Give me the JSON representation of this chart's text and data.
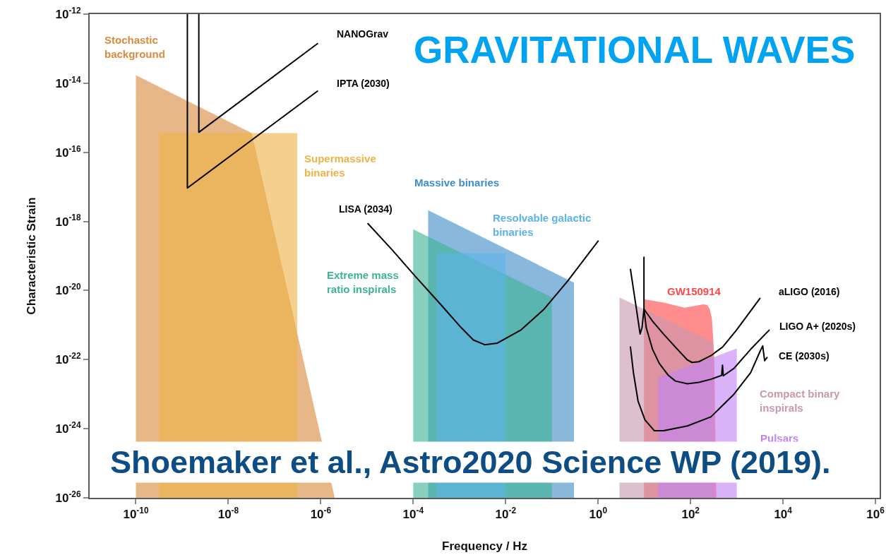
{
  "chart_data": {
    "type": "area",
    "title": "GRAVITATIONAL WAVES",
    "xlabel": "Frequency / Hz",
    "ylabel": "Characteristic Strain",
    "log": "xy",
    "xlim": [
      1e-11,
      1230000.0
    ],
    "ylim": [
      1e-26,
      1e-12
    ],
    "xticks": [
      {
        "value": 1e-10,
        "label": "10$^{-10}$"
      },
      {
        "value": 1e-08,
        "label": "10$^{-8}$"
      },
      {
        "value": 1e-06,
        "label": "10$^{-6}$"
      },
      {
        "value": 0.0001,
        "label": "10$^{-4}$"
      },
      {
        "value": 0.01,
        "label": "10$^{-2}$"
      },
      {
        "value": 1,
        "label": "10$^{0}$"
      },
      {
        "value": 100,
        "label": "10$^{2}$"
      },
      {
        "value": 10000,
        "label": "10$^{4}$"
      },
      {
        "value": 1000000,
        "label": "10$^{6}$"
      }
    ],
    "yticks": [
      {
        "value": 1e-26,
        "label": "10$^{-26}$"
      },
      {
        "value": 1e-24,
        "label": "10$^{-24}$"
      },
      {
        "value": 1e-22,
        "label": "10$^{-22}$"
      },
      {
        "value": 1e-20,
        "label": "10$^{-20}$"
      },
      {
        "value": 1e-18,
        "label": "10$^{-18}$"
      },
      {
        "value": 1e-16,
        "label": "10$^{-16}$"
      },
      {
        "value": 1e-14,
        "label": "10$^{-14}$"
      },
      {
        "value": 1e-12,
        "label": "10$^{-12}$"
      }
    ],
    "grid": false,
    "legend": false,
    "annotations": [
      "Shoemaker et al., Astro2020 Science WP (2019)."
    ],
    "series": [
      {
        "name": "Stochastic background",
        "color": "#d98a3e",
        "x": [
          1e-10,
          3.2e-08,
          2e-06
        ],
        "values": [
          1.7e-14,
          3.6e-16,
          1e-26
        ]
      },
      {
        "name": "Supermassive binaries",
        "color": "#eeb247",
        "x": [
          3.2e-10,
          3.1e-07
        ],
        "values": [
          3.6e-16,
          3.6e-16
        ]
      },
      {
        "name": "Massive binaries",
        "color": "#3f8dc6",
        "x": [
          0.00021,
          0.3
        ],
        "values": [
          2.1e-18,
          1.7e-20
        ]
      },
      {
        "name": "Extreme mass ratio inspirals",
        "color": "#3db394",
        "x": [
          0.0001,
          0.1
        ],
        "values": [
          5.9e-19,
          6.3e-21
        ]
      },
      {
        "name": "Resolvable galactic binaries",
        "color": "#5cb3e6",
        "x": [
          0.00032,
          0.01
        ],
        "values": [
          1.2e-19,
          1.2e-19
        ]
      },
      {
        "name": "GW150914",
        "color": "#ff4747",
        "x": [
          9.8,
          26,
          74,
          190,
          230,
          260,
          290,
          305,
          325,
          360
        ],
        "values": [
          5.6e-21,
          4.5e-21,
          3.2e-21,
          4e-21,
          3.8e-21,
          2.9e-21,
          1.5e-21,
          5.1e-22,
          1.1e-22,
          1e-26
        ]
      },
      {
        "name": "Compact binary inspirals",
        "color": "#c898b0",
        "x": [
          2.9,
          300
        ],
        "values": [
          6.3e-21,
          3.2e-22
        ]
      },
      {
        "name": "Pulsars",
        "color": "#c283f5",
        "x": [
          20,
          68,
          190,
          1000
        ],
        "values": [
          3.1e-23,
          5.6e-23,
          9.1e-23,
          2.1e-22
        ]
      },
      {
        "name": "NANOGrav",
        "type": "line",
        "color": "#000000",
        "x": [
          2.3e-09,
          2.3e-09,
          8.5e-07
        ],
        "values": [
          1e-12,
          3.8e-16,
          1.4e-13
        ]
      },
      {
        "name": "IPTA (2030)",
        "type": "line",
        "color": "#000000",
        "x": [
          1.3e-09,
          1.3e-09,
          8.5e-07
        ],
        "values": [
          1e-12,
          9.3e-18,
          5.9e-15
        ]
      },
      {
        "name": "LISA (2034)",
        "type": "line",
        "color": "#000000",
        "x": [
          1.05e-05,
          3.5e-05,
          0.00011,
          0.00035,
          0.0011,
          0.002,
          0.0035,
          0.0066,
          0.021,
          0.068,
          0.22,
          1.0
        ],
        "values": [
          8.6e-19,
          1.5e-19,
          2.6e-20,
          4.7e-21,
          8.3e-22,
          3.7e-22,
          2.7e-22,
          3e-22,
          7.1e-22,
          2.9e-21,
          1.9e-20,
          2.7e-19
        ]
      },
      {
        "name": "aLIGO (2016)",
        "type": "line",
        "color": "#000000",
        "x": [
          5.0,
          6.5,
          8.1,
          8.9,
          9.8,
          15,
          26,
          47,
          85,
          107,
          151,
          275,
          490,
          980,
          3160
        ],
        "values": [
          4.1e-20,
          4e-21,
          5.5e-22,
          8.3e-22,
          2.9e-21,
          1.3e-21,
          5.5e-22,
          2.3e-22,
          9.8e-23,
          8.3e-23,
          8.7e-23,
          1.3e-22,
          2.3e-22,
          7.1e-22,
          5.9e-21
        ]
      },
      {
        "name": "LIGO A+ (2020s)",
        "type": "line",
        "color": "#000000",
        "x": [
          9.8,
          9.8,
          11,
          15,
          21,
          33,
          47,
          85,
          151,
          275,
          470,
          490,
          510,
          870,
          2000,
          5000
        ],
        "values": [
          9.2e-20,
          2.9e-21,
          8.3e-22,
          2e-22,
          7.8e-23,
          3.5e-23,
          2.4e-23,
          2e-23,
          2.2e-23,
          2.7e-23,
          3.5e-23,
          6.9e-23,
          3.4e-23,
          5.6e-23,
          2e-22,
          7.1e-22
        ]
      },
      {
        "name": "CE (2030s)",
        "type": "line",
        "color": "#000000",
        "x": [
          5.0,
          5.8,
          7.3,
          10.3,
          16.5,
          26,
          85,
          275,
          870,
          2000,
          3160,
          3630,
          4000,
          4500
        ],
        "values": [
          2.3e-22,
          4.2e-23,
          6.3e-24,
          1.8e-24,
          8.7e-25,
          8.7e-25,
          1.2e-24,
          2.2e-24,
          1e-23,
          4.2e-23,
          1.7e-22,
          2.5e-22,
          9.3e-23,
          1.15e-22
        ]
      }
    ]
  }
}
